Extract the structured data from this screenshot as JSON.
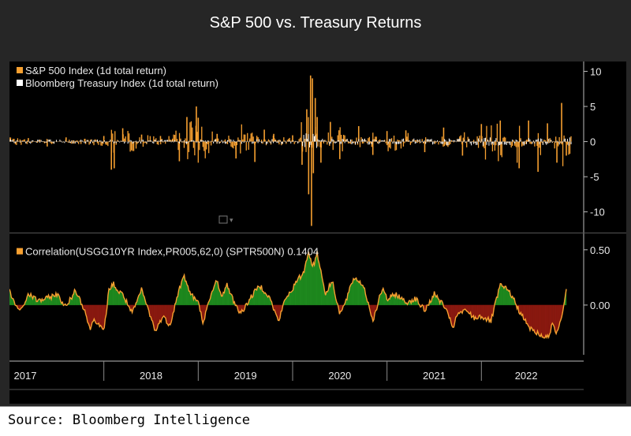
{
  "title": "S&P 500 vs. Treasury Returns",
  "source": "Source: Bloomberg Intelligence",
  "colors": {
    "background": "#262626",
    "panel": "#000000",
    "spx": "#f7a030",
    "treasury": "#ffffff",
    "corr_line": "#f7a030",
    "pos_fill": "#1f8a1f",
    "neg_fill": "#8b1a10",
    "axis_text": "#e8e8e8",
    "grid": "#7a7a7a"
  },
  "chart_data": [
    {
      "type": "bar",
      "panel": "top",
      "legend": [
        {
          "label": "S&P 500 Index (1d total return)",
          "color": "#f7a030"
        },
        {
          "label": "Bloomberg Treasury Index (1d total return)",
          "color": "#ffffff"
        }
      ],
      "y_ticks": [
        10,
        5,
        0,
        -5,
        -10
      ],
      "ylim": [
        -12.5,
        10.5
      ],
      "x_range": [
        2017.0,
        2022.95
      ],
      "series": [
        {
          "name": "S&P 500 Index (1d total return)",
          "note": "approximate daily returns (%) read off the chart",
          "x": [
            2017.0,
            2017.2,
            2017.4,
            2017.6,
            2017.8,
            2018.0,
            2018.08,
            2018.11,
            2018.2,
            2018.4,
            2018.6,
            2018.8,
            2018.88,
            2018.98,
            2019.0,
            2019.2,
            2019.4,
            2019.6,
            2019.7,
            2019.8,
            2020.0,
            2020.1,
            2020.15,
            2020.17,
            2020.19,
            2020.2,
            2020.21,
            2020.22,
            2020.24,
            2020.26,
            2020.3,
            2020.4,
            2020.5,
            2020.7,
            2020.85,
            2021.0,
            2021.2,
            2021.4,
            2021.6,
            2021.8,
            2022.0,
            2022.2,
            2022.4,
            2022.5,
            2022.6,
            2022.7,
            2022.8,
            2022.85,
            2022.9
          ],
          "values": [
            0.6,
            0.5,
            -0.7,
            0.6,
            0.4,
            0.8,
            -4.0,
            -3.8,
            1.9,
            1.0,
            0.8,
            -2.8,
            3.5,
            5.0,
            3.4,
            1.1,
            -2.4,
            -2.9,
            1.7,
            1.1,
            0.9,
            -3.3,
            4.6,
            -7.5,
            9.4,
            -12.0,
            9.0,
            -4.5,
            6.2,
            3.5,
            -3.0,
            2.8,
            -2.5,
            2.2,
            -1.9,
            1.5,
            1.6,
            -1.5,
            2.0,
            -2.0,
            2.5,
            3.0,
            -3.8,
            3.0,
            -4.3,
            2.6,
            -3.0,
            5.5,
            -2.0
          ]
        },
        {
          "name": "Bloomberg Treasury Index (1d total return)",
          "note": "approximate daily returns (%), small and centered on 0",
          "x": [
            2017.0,
            2018.0,
            2019.0,
            2020.0,
            2020.2,
            2020.3,
            2021.0,
            2022.0,
            2022.9
          ],
          "values": [
            0.3,
            0.3,
            0.3,
            0.4,
            1.5,
            0.5,
            0.4,
            0.6,
            0.6
          ]
        }
      ]
    },
    {
      "type": "area",
      "panel": "bottom",
      "legend": [
        {
          "label": "Correlation(USGG10YR Index,PR005,62,0) (SPTR500N) 0.1404",
          "color": "#f7a030"
        }
      ],
      "y_ticks": [
        0.5,
        0.0
      ],
      "y_tick_labels": [
        "0.50",
        "0.00"
      ],
      "ylim": [
        -0.45,
        0.62
      ],
      "x_range": [
        2017.0,
        2022.95
      ],
      "x_ticks": [
        2017,
        2018,
        2019,
        2020,
        2021,
        2022
      ],
      "series": [
        {
          "name": "Correlation(USGG10YR Index,PR005,62,0) (SPTR500N)",
          "last_value": 0.1404,
          "x": [
            2017.0,
            2017.05,
            2017.12,
            2017.2,
            2017.3,
            2017.4,
            2017.5,
            2017.6,
            2017.7,
            2017.8,
            2017.85,
            2017.9,
            2017.95,
            2018.0,
            2018.05,
            2018.1,
            2018.15,
            2018.2,
            2018.3,
            2018.4,
            2018.5,
            2018.55,
            2018.62,
            2018.7,
            2018.8,
            2018.85,
            2018.92,
            2019.0,
            2019.05,
            2019.15,
            2019.2,
            2019.25,
            2019.3,
            2019.35,
            2019.45,
            2019.55,
            2019.65,
            2019.75,
            2019.85,
            2019.92,
            2020.0,
            2020.05,
            2020.12,
            2020.17,
            2020.2,
            2020.23,
            2020.26,
            2020.3,
            2020.35,
            2020.42,
            2020.5,
            2020.55,
            2020.65,
            2020.75,
            2020.85,
            2020.95,
            2021.0,
            2021.1,
            2021.2,
            2021.3,
            2021.4,
            2021.5,
            2021.6,
            2021.7,
            2021.75,
            2021.85,
            2021.92,
            2022.0,
            2022.1,
            2022.2,
            2022.3,
            2022.4,
            2022.5,
            2022.6,
            2022.7,
            2022.75,
            2022.8,
            2022.85,
            2022.9
          ],
          "values": [
            0.12,
            0.02,
            -0.06,
            0.1,
            0.04,
            0.06,
            0.1,
            -0.02,
            0.14,
            -0.05,
            -0.22,
            -0.12,
            -0.18,
            -0.25,
            0.12,
            0.2,
            0.12,
            0.1,
            -0.08,
            0.14,
            -0.12,
            -0.24,
            -0.1,
            -0.18,
            0.15,
            0.26,
            0.1,
            0.02,
            -0.15,
            0.12,
            0.24,
            0.05,
            0.2,
            0.08,
            -0.08,
            0.06,
            0.18,
            0.08,
            -0.15,
            0.05,
            0.15,
            0.22,
            0.3,
            0.5,
            0.36,
            0.38,
            0.48,
            0.3,
            0.1,
            0.22,
            -0.08,
            0.0,
            0.25,
            0.18,
            -0.14,
            0.15,
            0.05,
            0.1,
            0.02,
            0.06,
            -0.05,
            0.1,
            0.0,
            -0.2,
            -0.08,
            -0.05,
            -0.12,
            -0.1,
            -0.15,
            0.18,
            0.12,
            -0.05,
            -0.2,
            -0.26,
            -0.3,
            -0.18,
            -0.25,
            -0.1,
            0.14
          ]
        }
      ]
    }
  ]
}
